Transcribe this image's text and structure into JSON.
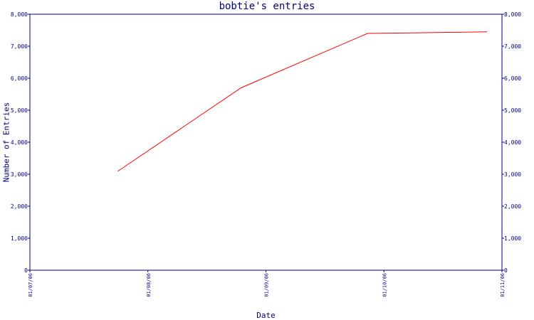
{
  "chart_data": {
    "type": "line",
    "title": "bobtie's entries",
    "xlabel": "Date",
    "ylabel": "Number of Entries",
    "x_tick_labels": [
      "01/07/06",
      "01/08/06",
      "01/09/06",
      "01/10/06",
      "01/11/06"
    ],
    "y_tick_labels": [
      "0",
      "1,000",
      "2,000",
      "3,000",
      "4,000",
      "5,000",
      "6,000",
      "7,000",
      "8,000"
    ],
    "ylim": [
      0,
      8000
    ],
    "xlim": [
      "2006-07-01",
      "2006-11-01"
    ],
    "series": [
      {
        "color": "#ff0000",
        "points": [
          {
            "x": "2006-07-24",
            "y": 3100
          },
          {
            "x": "2006-08-25",
            "y": 5700
          },
          {
            "x": "2006-09-27",
            "y": 7400
          },
          {
            "x": "2006-10-10",
            "y": 7420
          },
          {
            "x": "2006-10-28",
            "y": 7450
          }
        ]
      }
    ],
    "grid": false,
    "axis_color": "#000080",
    "right_axis_mirror": true
  }
}
